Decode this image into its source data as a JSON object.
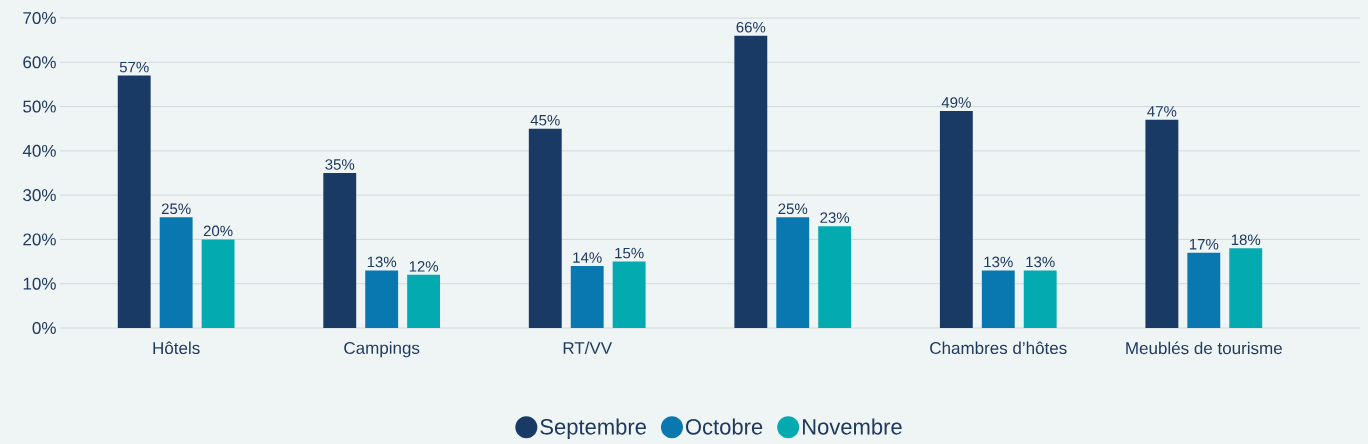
{
  "chart_data": {
    "type": "bar",
    "categories": [
      "Hôtels",
      "Campings",
      "RT/VV",
      null,
      "Chambres d’hôtes",
      "Meublés de tourisme"
    ],
    "series": [
      {
        "name": "Septembre",
        "color": "#1a3a66",
        "values": [
          57,
          35,
          45,
          66,
          49,
          47
        ],
        "value_labels": [
          "57%",
          "35%",
          "45%",
          "66%",
          "49%",
          "47%"
        ]
      },
      {
        "name": "Octobre",
        "color": "#0a78b0",
        "values": [
          25,
          13,
          14,
          25,
          13,
          17
        ],
        "value_labels": [
          "25%",
          "13%",
          "14%",
          "25%",
          "13%",
          "17%"
        ]
      },
      {
        "name": "Novembre",
        "color": "#03abb1",
        "values": [
          20,
          12,
          15,
          23,
          13,
          18
        ],
        "value_labels": [
          "20%",
          "12%",
          "15%",
          "23%",
          "13%",
          "18%"
        ]
      }
    ],
    "ylim": [
      0,
      70
    ],
    "yticks": [
      {
        "value": 0,
        "label": "0%"
      },
      {
        "value": 10,
        "label": "10%"
      },
      {
        "value": 20,
        "label": "20%"
      },
      {
        "value": 30,
        "label": "30%"
      },
      {
        "value": 40,
        "label": "40%"
      },
      {
        "value": 50,
        "label": "50%"
      },
      {
        "value": 60,
        "label": "60%"
      },
      {
        "value": 70,
        "label": "70%"
      }
    ],
    "grid": "y",
    "legend": "bottom"
  }
}
